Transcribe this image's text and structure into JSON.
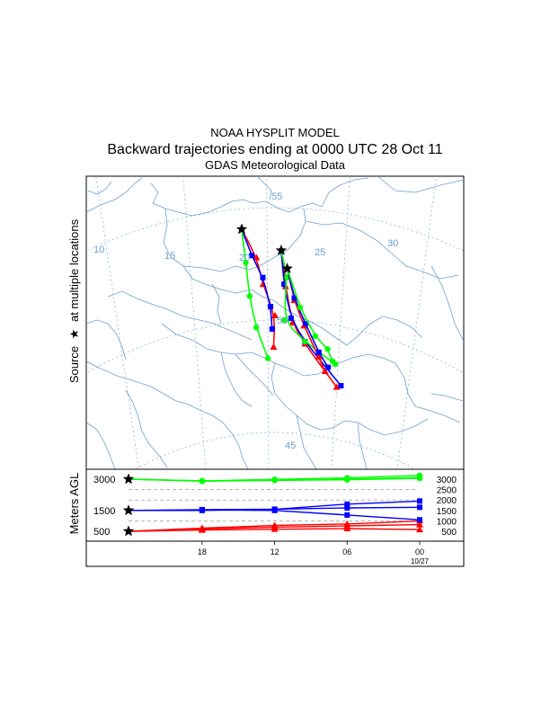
{
  "titles": {
    "model": "NOAA HYSPLIT MODEL",
    "main": "Backward trajectories ending at 0000 UTC 28 Oct 11",
    "data": "GDAS Meteorological Data"
  },
  "side_labels": {
    "source_prefix": "Source",
    "source_star": "★",
    "source_suffix": "at multiple locations",
    "meters": "Meters AGL"
  },
  "colors": {
    "traj_500": "#ff0000",
    "traj_1500": "#0000ff",
    "traj_3000": "#00ff00",
    "coast": "#6f9fcf",
    "grid": "#6f9fcf",
    "frame": "#000000"
  },
  "map_grid_labels": {
    "lon": [
      "10",
      "15",
      "20",
      "25",
      "30"
    ],
    "lat": [
      "55",
      "50",
      "45"
    ]
  },
  "chart_data": [
    {
      "type": "line",
      "title": "Backward trajectories ending at 0000 UTC 28 Oct 11",
      "description_units": "trajectory positions in degrees (lon E, lat N), hourly markers every 6 h",
      "sources": [
        {
          "name": "source-1",
          "lon": 18.4,
          "lat": 54.1,
          "series": [
            {
              "level_m": 500,
              "color": "red",
              "lon": [
                18.4,
                19.3,
                19.7,
                20.5,
                20.4
              ],
              "lat": [
                54.1,
                52.8,
                51.6,
                50.2,
                48.8
              ]
            },
            {
              "level_m": 1500,
              "color": "blue",
              "lon": [
                18.4,
                19.0,
                19.7,
                20.2,
                20.3
              ],
              "lat": [
                54.1,
                52.9,
                51.9,
                50.6,
                49.6
              ]
            },
            {
              "level_m": 3000,
              "color": "green",
              "lon": [
                18.4,
                18.6,
                18.8,
                19.2,
                20.0
              ],
              "lat": [
                54.1,
                52.6,
                51.1,
                49.7,
                48.3
              ]
            }
          ]
        },
        {
          "name": "source-2",
          "lon": 20.9,
          "lat": 53.1,
          "series": [
            {
              "level_m": 500,
              "color": "red",
              "lon": [
                20.9,
                21.2,
                21.7,
                22.6,
                25.0
              ],
              "lat": [
                53.1,
                51.5,
                49.9,
                49.0,
                47.3
              ]
            },
            {
              "level_m": 1500,
              "color": "blue",
              "lon": [
                20.9,
                21.1,
                21.6,
                22.6,
                25.3
              ],
              "lat": [
                53.1,
                51.6,
                50.1,
                49.1,
                47.4
              ]
            },
            {
              "level_m": 3000,
              "color": "green",
              "lon": [
                20.9,
                21.3,
                21.1,
                22.6,
                24.8
              ],
              "lat": [
                53.1,
                51.9,
                50.0,
                49.1,
                48.3
              ]
            }
          ]
        },
        {
          "name": "source-3",
          "lon": 21.3,
          "lat": 52.3,
          "series": [
            {
              "level_m": 500,
              "color": "red",
              "lon": [
                21.3,
                21.8,
                22.5,
                23.6,
                24.1
              ],
              "lat": [
                52.3,
                50.9,
                49.8,
                48.5,
                47.9
              ]
            },
            {
              "level_m": 1500,
              "color": "blue",
              "lon": [
                21.3,
                21.8,
                22.6,
                23.6,
                24.3
              ],
              "lat": [
                52.3,
                51.0,
                49.9,
                48.7,
                48.1
              ]
            },
            {
              "level_m": 3000,
              "color": "green",
              "lon": [
                21.3,
                22.2,
                23.3,
                24.2,
                24.6
              ],
              "lat": [
                52.3,
                50.6,
                49.4,
                48.9,
                48.4
              ]
            }
          ]
        }
      ]
    },
    {
      "type": "line",
      "title": "Height profile",
      "ylabel": "Meters AGL",
      "x_ticks": [
        "18",
        "12",
        "06",
        "00"
      ],
      "x_date_label": "10/27",
      "x_hours_before_end": [
        24,
        18,
        12,
        6,
        0
      ],
      "y_labels_left": [
        "3000",
        "1500",
        "500"
      ],
      "y_labels_right": [
        "3000",
        "2500",
        "2000",
        "1500",
        "1000",
        "500"
      ],
      "series": [
        {
          "name": "red-1",
          "level_m": 500,
          "values": [
            500,
            560,
            600,
            630,
            580
          ]
        },
        {
          "name": "red-2",
          "level_m": 500,
          "values": [
            500,
            650,
            780,
            850,
            1000
          ]
        },
        {
          "name": "red-3",
          "level_m": 500,
          "values": [
            500,
            610,
            700,
            760,
            820
          ]
        },
        {
          "name": "blue-1",
          "level_m": 1500,
          "values": [
            1500,
            1540,
            1560,
            1620,
            1650
          ]
        },
        {
          "name": "blue-2",
          "level_m": 1500,
          "values": [
            1500,
            1500,
            1550,
            1800,
            1950
          ]
        },
        {
          "name": "blue-3",
          "level_m": 1500,
          "values": [
            1500,
            1520,
            1500,
            1280,
            1050
          ]
        },
        {
          "name": "green-1",
          "level_m": 3000,
          "values": [
            3000,
            2920,
            2950,
            3000,
            3080
          ]
        },
        {
          "name": "green-2",
          "level_m": 3000,
          "values": [
            3000,
            2920,
            2990,
            3060,
            3180
          ]
        },
        {
          "name": "green-3",
          "level_m": 3000,
          "values": [
            3000,
            2900,
            2940,
            2970,
            3040
          ]
        }
      ]
    }
  ]
}
